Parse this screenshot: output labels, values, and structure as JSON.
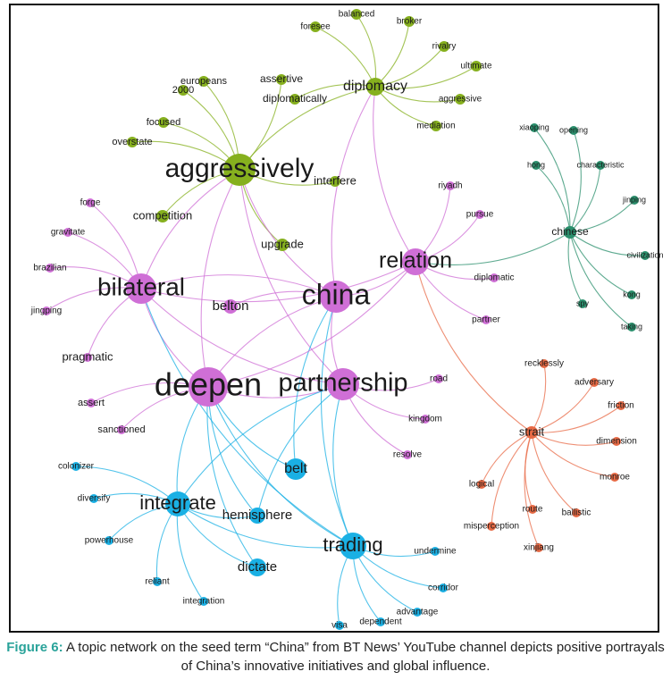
{
  "figure": {
    "groups": {
      "green": "#86b01e",
      "purple": "#cf6fd6",
      "teal": "#2a8f6c",
      "orange": "#e86a45",
      "blue": "#1ab0e4"
    },
    "nodes": [
      {
        "label": "aggressively",
        "group": "green"
      },
      {
        "label": "diplomacy",
        "group": "green"
      },
      {
        "label": "china",
        "group": "purple"
      },
      {
        "label": "bilateral",
        "group": "purple"
      },
      {
        "label": "relation",
        "group": "purple"
      },
      {
        "label": "deepen",
        "group": "purple"
      },
      {
        "label": "partnership",
        "group": "purple"
      },
      {
        "label": "chinese",
        "group": "teal"
      },
      {
        "label": "strait",
        "group": "orange"
      },
      {
        "label": "trading",
        "group": "blue"
      },
      {
        "label": "integrate",
        "group": "blue"
      },
      {
        "label": "assertive",
        "group": "green"
      },
      {
        "label": "diplomatically",
        "group": "green"
      },
      {
        "label": "europeans",
        "group": "green"
      },
      {
        "label": "2000",
        "group": "green"
      },
      {
        "label": "focused",
        "group": "green"
      },
      {
        "label": "overstate",
        "group": "green"
      },
      {
        "label": "foresee",
        "group": "green"
      },
      {
        "label": "balanced",
        "group": "green"
      },
      {
        "label": "broker",
        "group": "green"
      },
      {
        "label": "rivalry",
        "group": "green"
      },
      {
        "label": "ultimate",
        "group": "green"
      },
      {
        "label": "aggressive",
        "group": "green"
      },
      {
        "label": "mediation",
        "group": "green"
      },
      {
        "label": "interfere",
        "group": "green"
      },
      {
        "label": "competition",
        "group": "green"
      },
      {
        "label": "upgrade",
        "group": "green"
      },
      {
        "label": "belton",
        "group": "purple"
      },
      {
        "label": "forge",
        "group": "purple"
      },
      {
        "label": "gravitate",
        "group": "purple"
      },
      {
        "label": "brazilian",
        "group": "purple"
      },
      {
        "label": "jingping",
        "group": "purple"
      },
      {
        "label": "pragmatic",
        "group": "purple"
      },
      {
        "label": "assert",
        "group": "purple"
      },
      {
        "label": "sanctioned",
        "group": "purple"
      },
      {
        "label": "riyadh",
        "group": "purple"
      },
      {
        "label": "pursue",
        "group": "purple"
      },
      {
        "label": "diplomatic",
        "group": "purple"
      },
      {
        "label": "partner",
        "group": "purple"
      },
      {
        "label": "road",
        "group": "purple"
      },
      {
        "label": "kingdom",
        "group": "purple"
      },
      {
        "label": "resolve",
        "group": "purple"
      },
      {
        "label": "xiaoping",
        "group": "teal"
      },
      {
        "label": "opening",
        "group": "teal"
      },
      {
        "label": "hong",
        "group": "teal"
      },
      {
        "label": "characteristic",
        "group": "teal"
      },
      {
        "label": "jinping",
        "group": "teal"
      },
      {
        "label": "civilization",
        "group": "teal"
      },
      {
        "label": "kong",
        "group": "teal"
      },
      {
        "label": "spy",
        "group": "teal"
      },
      {
        "label": "taking",
        "group": "teal"
      },
      {
        "label": "recklessly",
        "group": "orange"
      },
      {
        "label": "adversary",
        "group": "orange"
      },
      {
        "label": "friction",
        "group": "orange"
      },
      {
        "label": "dimension",
        "group": "orange"
      },
      {
        "label": "monroe",
        "group": "orange"
      },
      {
        "label": "ballistic",
        "group": "orange"
      },
      {
        "label": "route",
        "group": "orange"
      },
      {
        "label": "xinjiang",
        "group": "orange"
      },
      {
        "label": "misperception",
        "group": "orange"
      },
      {
        "label": "logical",
        "group": "orange"
      },
      {
        "label": "belt",
        "group": "blue"
      },
      {
        "label": "hemisphere",
        "group": "blue"
      },
      {
        "label": "dictate",
        "group": "blue"
      },
      {
        "label": "colonizer",
        "group": "blue"
      },
      {
        "label": "diversify",
        "group": "blue"
      },
      {
        "label": "powerhouse",
        "group": "blue"
      },
      {
        "label": "reliant",
        "group": "blue"
      },
      {
        "label": "integration",
        "group": "blue"
      },
      {
        "label": "undermine",
        "group": "blue"
      },
      {
        "label": "corridor",
        "group": "blue"
      },
      {
        "label": "advantage",
        "group": "blue"
      },
      {
        "label": "dependent",
        "group": "blue"
      },
      {
        "label": "visa",
        "group": "blue"
      }
    ]
  },
  "caption": {
    "label": "Figure 6:",
    "text": "A topic network on the seed term “China” from BT News’ YouTube channel depicts positive portrayals of China’s innovative initiatives and global influence."
  }
}
